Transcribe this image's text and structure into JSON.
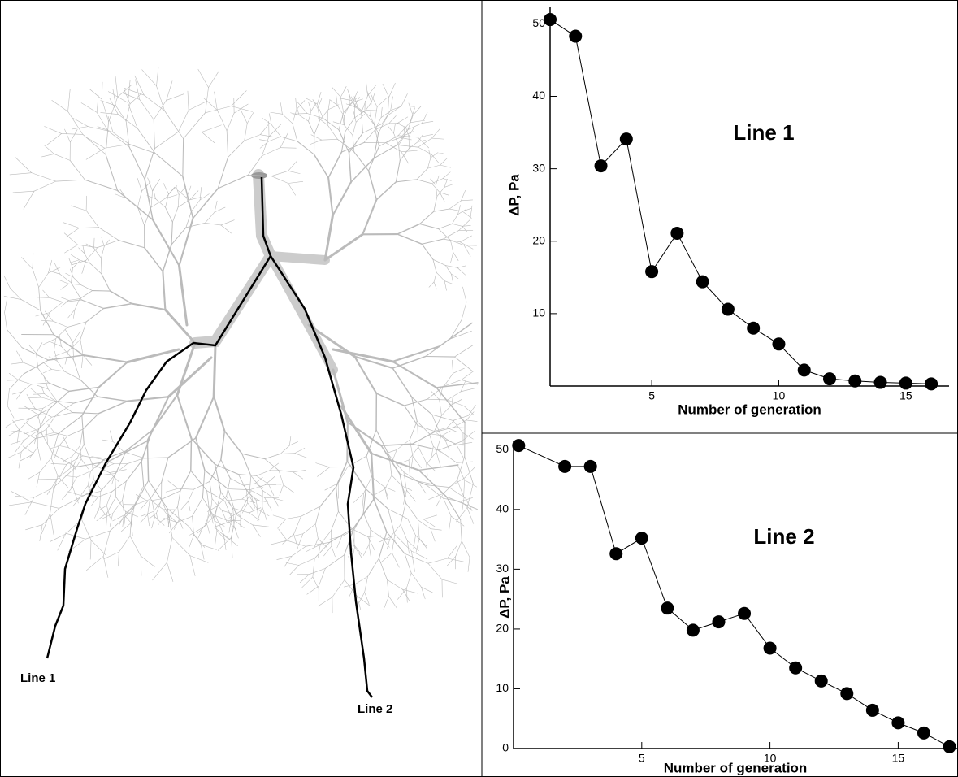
{
  "diagram": {
    "labels": [
      "Line 1",
      "Line 2"
    ]
  },
  "chart_data": [
    {
      "type": "line",
      "title": "Line 1",
      "xlabel": "Number of generation",
      "ylabel": "ΔP, Pa",
      "x": [
        1,
        2,
        3,
        4,
        5,
        6,
        7,
        8,
        9,
        10,
        11,
        12,
        13,
        14,
        15,
        16
      ],
      "series": [
        {
          "name": "Line 1",
          "color": "#000000",
          "values": [
            50.6,
            48.3,
            30.4,
            34.1,
            15.8,
            21.1,
            14.4,
            10.6,
            8.0,
            5.8,
            2.2,
            1.0,
            0.7,
            0.5,
            0.4,
            0.3
          ]
        }
      ],
      "xlim": [
        1,
        16.7
      ],
      "ylim": [
        0,
        52.4
      ],
      "xticks": [
        5,
        10,
        15
      ],
      "yticks": [
        10,
        20,
        30,
        40,
        50
      ]
    },
    {
      "type": "line",
      "title": "Line 2",
      "xlabel": "Number of generation",
      "ylabel": "ΔP, Pa",
      "x": [
        0.2,
        2,
        3,
        4,
        5,
        6,
        7,
        8,
        9,
        10,
        11,
        12,
        13,
        14,
        15,
        16,
        17
      ],
      "series": [
        {
          "name": "Line 2",
          "color": "#000000",
          "values": [
            50.7,
            47.2,
            47.2,
            32.6,
            35.2,
            23.5,
            19.8,
            21.2,
            22.6,
            16.8,
            13.5,
            11.3,
            9.2,
            6.4,
            4.3,
            2.6,
            0.3
          ]
        }
      ],
      "xlim": [
        0,
        17.3
      ],
      "ylim": [
        0,
        51.4
      ],
      "xticks": [
        5,
        10,
        15
      ],
      "yticks": [
        0,
        10,
        20,
        30,
        40,
        50
      ]
    }
  ]
}
